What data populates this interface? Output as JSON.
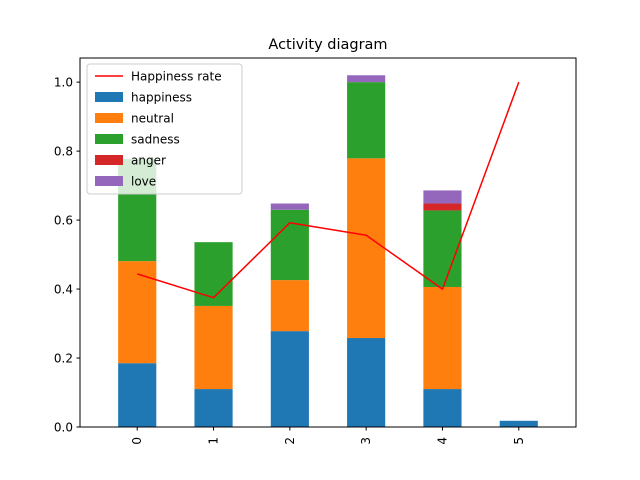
{
  "chart_data": {
    "type": "bar",
    "stacked": true,
    "title": "Activity diagram",
    "xlabel": "",
    "ylabel": "",
    "categories": [
      "0",
      "1",
      "2",
      "3",
      "4",
      "5"
    ],
    "ylim": [
      0,
      1.07
    ],
    "yticks": [
      0.0,
      0.2,
      0.4,
      0.6,
      0.8,
      1.0
    ],
    "ytick_labels": [
      "0.0",
      "0.2",
      "0.4",
      "0.6",
      "0.8",
      "1.0"
    ],
    "grid": false,
    "legend_position": "top-left",
    "series": [
      {
        "name": "happiness",
        "color": "#1f77b4",
        "values": [
          0.185,
          0.11,
          0.278,
          0.258,
          0.11,
          0.018
        ]
      },
      {
        "name": "neutral",
        "color": "#ff7f0e",
        "values": [
          0.296,
          0.241,
          0.148,
          0.521,
          0.296,
          0.0
        ]
      },
      {
        "name": "sadness",
        "color": "#2ca02c",
        "values": [
          0.296,
          0.185,
          0.204,
          0.221,
          0.222,
          0.0
        ]
      },
      {
        "name": "anger",
        "color": "#d62728",
        "values": [
          0.0,
          0.0,
          0.0,
          0.0,
          0.02,
          0.0
        ]
      },
      {
        "name": "love",
        "color": "#9467bd",
        "values": [
          0.0,
          0.0,
          0.018,
          0.02,
          0.038,
          0.0
        ]
      }
    ],
    "line_series": {
      "name": "Happiness rate",
      "color": "#ff0000",
      "values": [
        0.444,
        0.375,
        0.592,
        0.556,
        0.4,
        1.0
      ]
    }
  }
}
